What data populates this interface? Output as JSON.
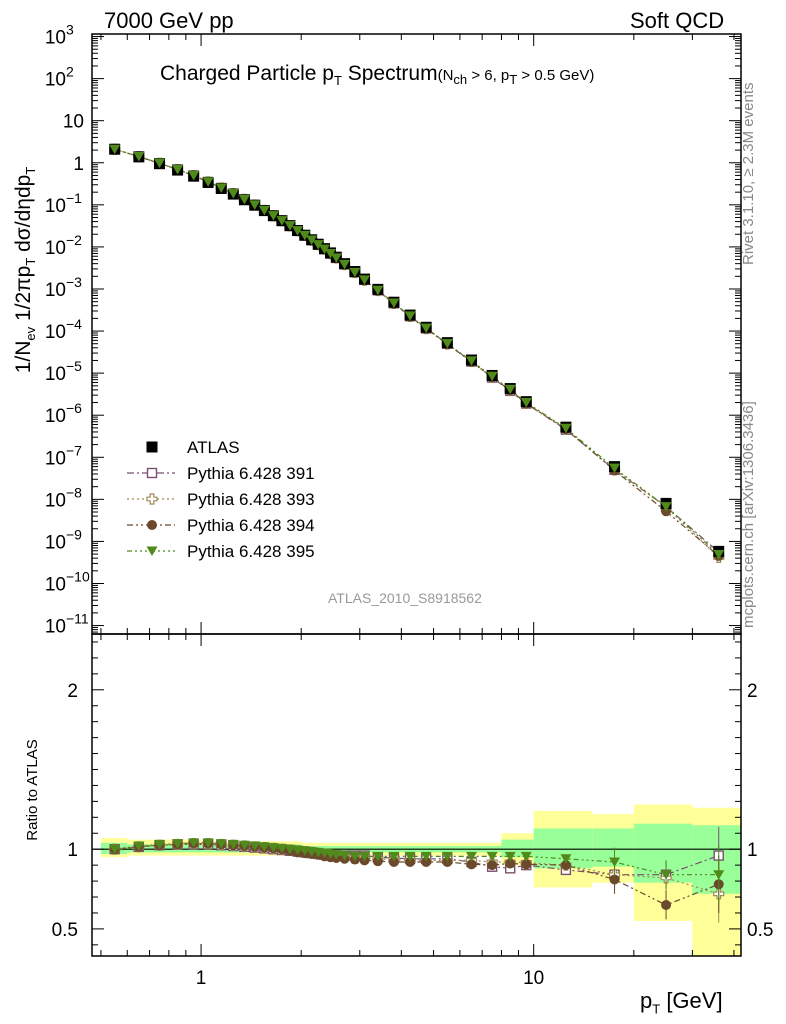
{
  "header": {
    "left": "7000 GeV pp",
    "right": "Soft QCD"
  },
  "side_labels": {
    "rivet": "Rivet 3.1.10, ≥ 2.3M events",
    "mcplots": "mcplots.cern.ch [arXiv:1306.3436]"
  },
  "analysis_id": "ATLAS_2010_S8918562",
  "chart_data": [
    {
      "type": "scatter",
      "title_main": "Charged Particle p",
      "title_main_sub": "T",
      "title_main_tail": " Spectrum",
      "title_cut": "(N",
      "title_cut_sub1": "ch",
      "title_cut_mid": " > 6, p",
      "title_cut_sub2": "T",
      "title_cut_tail": " > 0.5 GeV)",
      "ylabel_parts": [
        "1/N",
        "ev",
        " 1/2πp",
        "T",
        " dσ/dηdp",
        "T"
      ],
      "xscale": "log",
      "yscale": "log",
      "xlim": [
        0.47,
        42
      ],
      "ylim": [
        6.3e-12,
        1150.0
      ],
      "y_ticks": [
        {
          "v": 1000.0,
          "t": "10",
          "e": "3"
        },
        {
          "v": 100.0,
          "t": "10",
          "e": "2"
        },
        {
          "v": 10.0,
          "t": "10",
          "e": ""
        },
        {
          "v": 1,
          "t": "1",
          "e": ""
        },
        {
          "v": 0.1,
          "t": "10",
          "e": "−1"
        },
        {
          "v": 0.01,
          "t": "10",
          "e": "−2"
        },
        {
          "v": 0.001,
          "t": "10",
          "e": "−3"
        },
        {
          "v": 0.0001,
          "t": "10",
          "e": "−4"
        },
        {
          "v": 1e-05,
          "t": "10",
          "e": "−5"
        },
        {
          "v": 1e-06,
          "t": "10",
          "e": "−6"
        },
        {
          "v": 1e-07,
          "t": "10",
          "e": "−7"
        },
        {
          "v": 1e-08,
          "t": "10",
          "e": "−8"
        },
        {
          "v": 1e-09,
          "t": "10",
          "e": "−9"
        },
        {
          "v": 1e-10,
          "t": "10",
          "e": "−10"
        },
        {
          "v": 1e-11,
          "t": "10",
          "e": "−11"
        }
      ],
      "x": [
        0.55,
        0.65,
        0.75,
        0.85,
        0.95,
        1.05,
        1.15,
        1.25,
        1.35,
        1.45,
        1.55,
        1.65,
        1.75,
        1.85,
        1.95,
        2.05,
        2.15,
        2.25,
        2.35,
        2.45,
        2.55,
        2.7,
        2.9,
        3.1,
        3.4,
        3.8,
        4.25,
        4.75,
        5.5,
        6.5,
        7.5,
        8.5,
        9.5,
        12.5,
        17.5,
        25,
        36
      ],
      "series": [
        {
          "name": "ATLAS",
          "marker": "square",
          "color": "#000000",
          "values": [
            2.1,
            1.38,
            0.95,
            0.67,
            0.48,
            0.34,
            0.245,
            0.18,
            0.132,
            0.098,
            0.073,
            0.055,
            0.042,
            0.032,
            0.0245,
            0.019,
            0.0148,
            0.0116,
            0.0091,
            0.0072,
            0.0057,
            0.004,
            0.0026,
            0.00172,
            0.00098,
            0.000485,
            0.00024,
            0.000123,
            5.3e-05,
            2.05e-05,
            8.8e-06,
            4.3e-06,
            2.1e-06,
            5.2e-07,
            6e-08,
            8e-09,
            5.8e-10
          ]
        },
        {
          "name": "Pythia 6.428 391",
          "marker": "open-square",
          "color": "#7b4f6e",
          "ratio": [
            1.0,
            1.015,
            1.025,
            1.03,
            1.03,
            1.03,
            1.025,
            1.02,
            1.015,
            1.01,
            1.005,
            1.0,
            0.995,
            0.99,
            0.985,
            0.98,
            0.975,
            0.97,
            0.965,
            0.96,
            0.96,
            0.96,
            0.96,
            0.96,
            0.95,
            0.945,
            0.94,
            0.94,
            0.94,
            0.92,
            0.89,
            0.88,
            0.9,
            0.87,
            0.84,
            0.84,
            0.96
          ]
        },
        {
          "name": "Pythia 6.428 393",
          "marker": "open-cross",
          "color": "#a08a55",
          "ratio": [
            1.0,
            1.015,
            1.025,
            1.03,
            1.035,
            1.035,
            1.03,
            1.025,
            1.02,
            1.015,
            1.01,
            1.005,
            1.0,
            0.995,
            0.99,
            0.985,
            0.98,
            0.975,
            0.97,
            0.965,
            0.96,
            0.955,
            0.95,
            0.945,
            0.94,
            0.935,
            0.93,
            0.93,
            0.93,
            0.93,
            0.92,
            0.92,
            0.915,
            0.9,
            0.84,
            0.82,
            0.72
          ]
        },
        {
          "name": "Pythia 6.428 394",
          "marker": "circle",
          "color": "#6b4a2c",
          "ratio": [
            1.0,
            1.015,
            1.025,
            1.03,
            1.035,
            1.035,
            1.03,
            1.025,
            1.02,
            1.015,
            1.01,
            1.005,
            1.0,
            0.99,
            0.98,
            0.975,
            0.97,
            0.965,
            0.955,
            0.95,
            0.945,
            0.94,
            0.935,
            0.93,
            0.925,
            0.92,
            0.92,
            0.92,
            0.92,
            0.905,
            0.9,
            0.91,
            0.905,
            0.9,
            0.81,
            0.65,
            0.78
          ]
        },
        {
          "name": "Pythia 6.428 395",
          "marker": "triangle-down",
          "color": "#4f8a1a",
          "ratio": [
            1.0,
            1.02,
            1.03,
            1.035,
            1.04,
            1.04,
            1.035,
            1.03,
            1.025,
            1.02,
            1.015,
            1.01,
            1.005,
            1.0,
            0.995,
            0.99,
            0.985,
            0.98,
            0.975,
            0.97,
            0.965,
            0.96,
            0.955,
            0.955,
            0.955,
            0.955,
            0.955,
            0.955,
            0.955,
            0.955,
            0.955,
            0.955,
            0.955,
            0.94,
            0.92,
            0.84,
            0.84
          ]
        }
      ],
      "legend_position": "bottom-left"
    },
    {
      "type": "ratio",
      "ylabel": "Ratio to ATLAS",
      "ylim": [
        0.33,
        2.35
      ],
      "y_ticks": [
        {
          "v": 0.5,
          "t": "0.5"
        },
        {
          "v": 1,
          "t": "1"
        },
        {
          "v": 2,
          "t": "2"
        }
      ],
      "x_ticks": [
        {
          "v": 1,
          "t": "1"
        },
        {
          "v": 10,
          "t": "10"
        }
      ],
      "xlabel_parts": [
        "p",
        "T",
        "  [GeV]"
      ],
      "bands": [
        {
          "x": [
            0.5,
            0.6
          ],
          "yellow": [
            0.95,
            1.07
          ],
          "green": [
            0.97,
            1.04
          ]
        },
        {
          "x": [
            0.6,
            1.0
          ],
          "yellow": [
            0.96,
            1.06
          ],
          "green": [
            0.98,
            1.03
          ]
        },
        {
          "x": [
            1.0,
            2.0
          ],
          "yellow": [
            0.96,
            1.05
          ],
          "green": [
            0.98,
            1.03
          ]
        },
        {
          "x": [
            2.0,
            8.0
          ],
          "yellow": [
            0.96,
            1.04
          ],
          "green": [
            0.98,
            1.02
          ]
        },
        {
          "x": [
            8.0,
            10.0
          ],
          "yellow": [
            0.9,
            1.1
          ],
          "green": [
            0.95,
            1.06
          ]
        },
        {
          "x": [
            10.0,
            15.0
          ],
          "yellow": [
            0.76,
            1.24
          ],
          "green": [
            0.88,
            1.13
          ]
        },
        {
          "x": [
            15.0,
            20.0
          ],
          "yellow": [
            0.79,
            1.22
          ],
          "green": [
            0.89,
            1.13
          ]
        },
        {
          "x": [
            20.0,
            30.0
          ],
          "yellow": [
            0.55,
            1.28
          ],
          "green": [
            0.79,
            1.16
          ]
        },
        {
          "x": [
            30.0,
            42.0
          ],
          "yellow": [
            0.33,
            1.26
          ],
          "green": [
            0.72,
            1.15
          ]
        }
      ]
    }
  ]
}
